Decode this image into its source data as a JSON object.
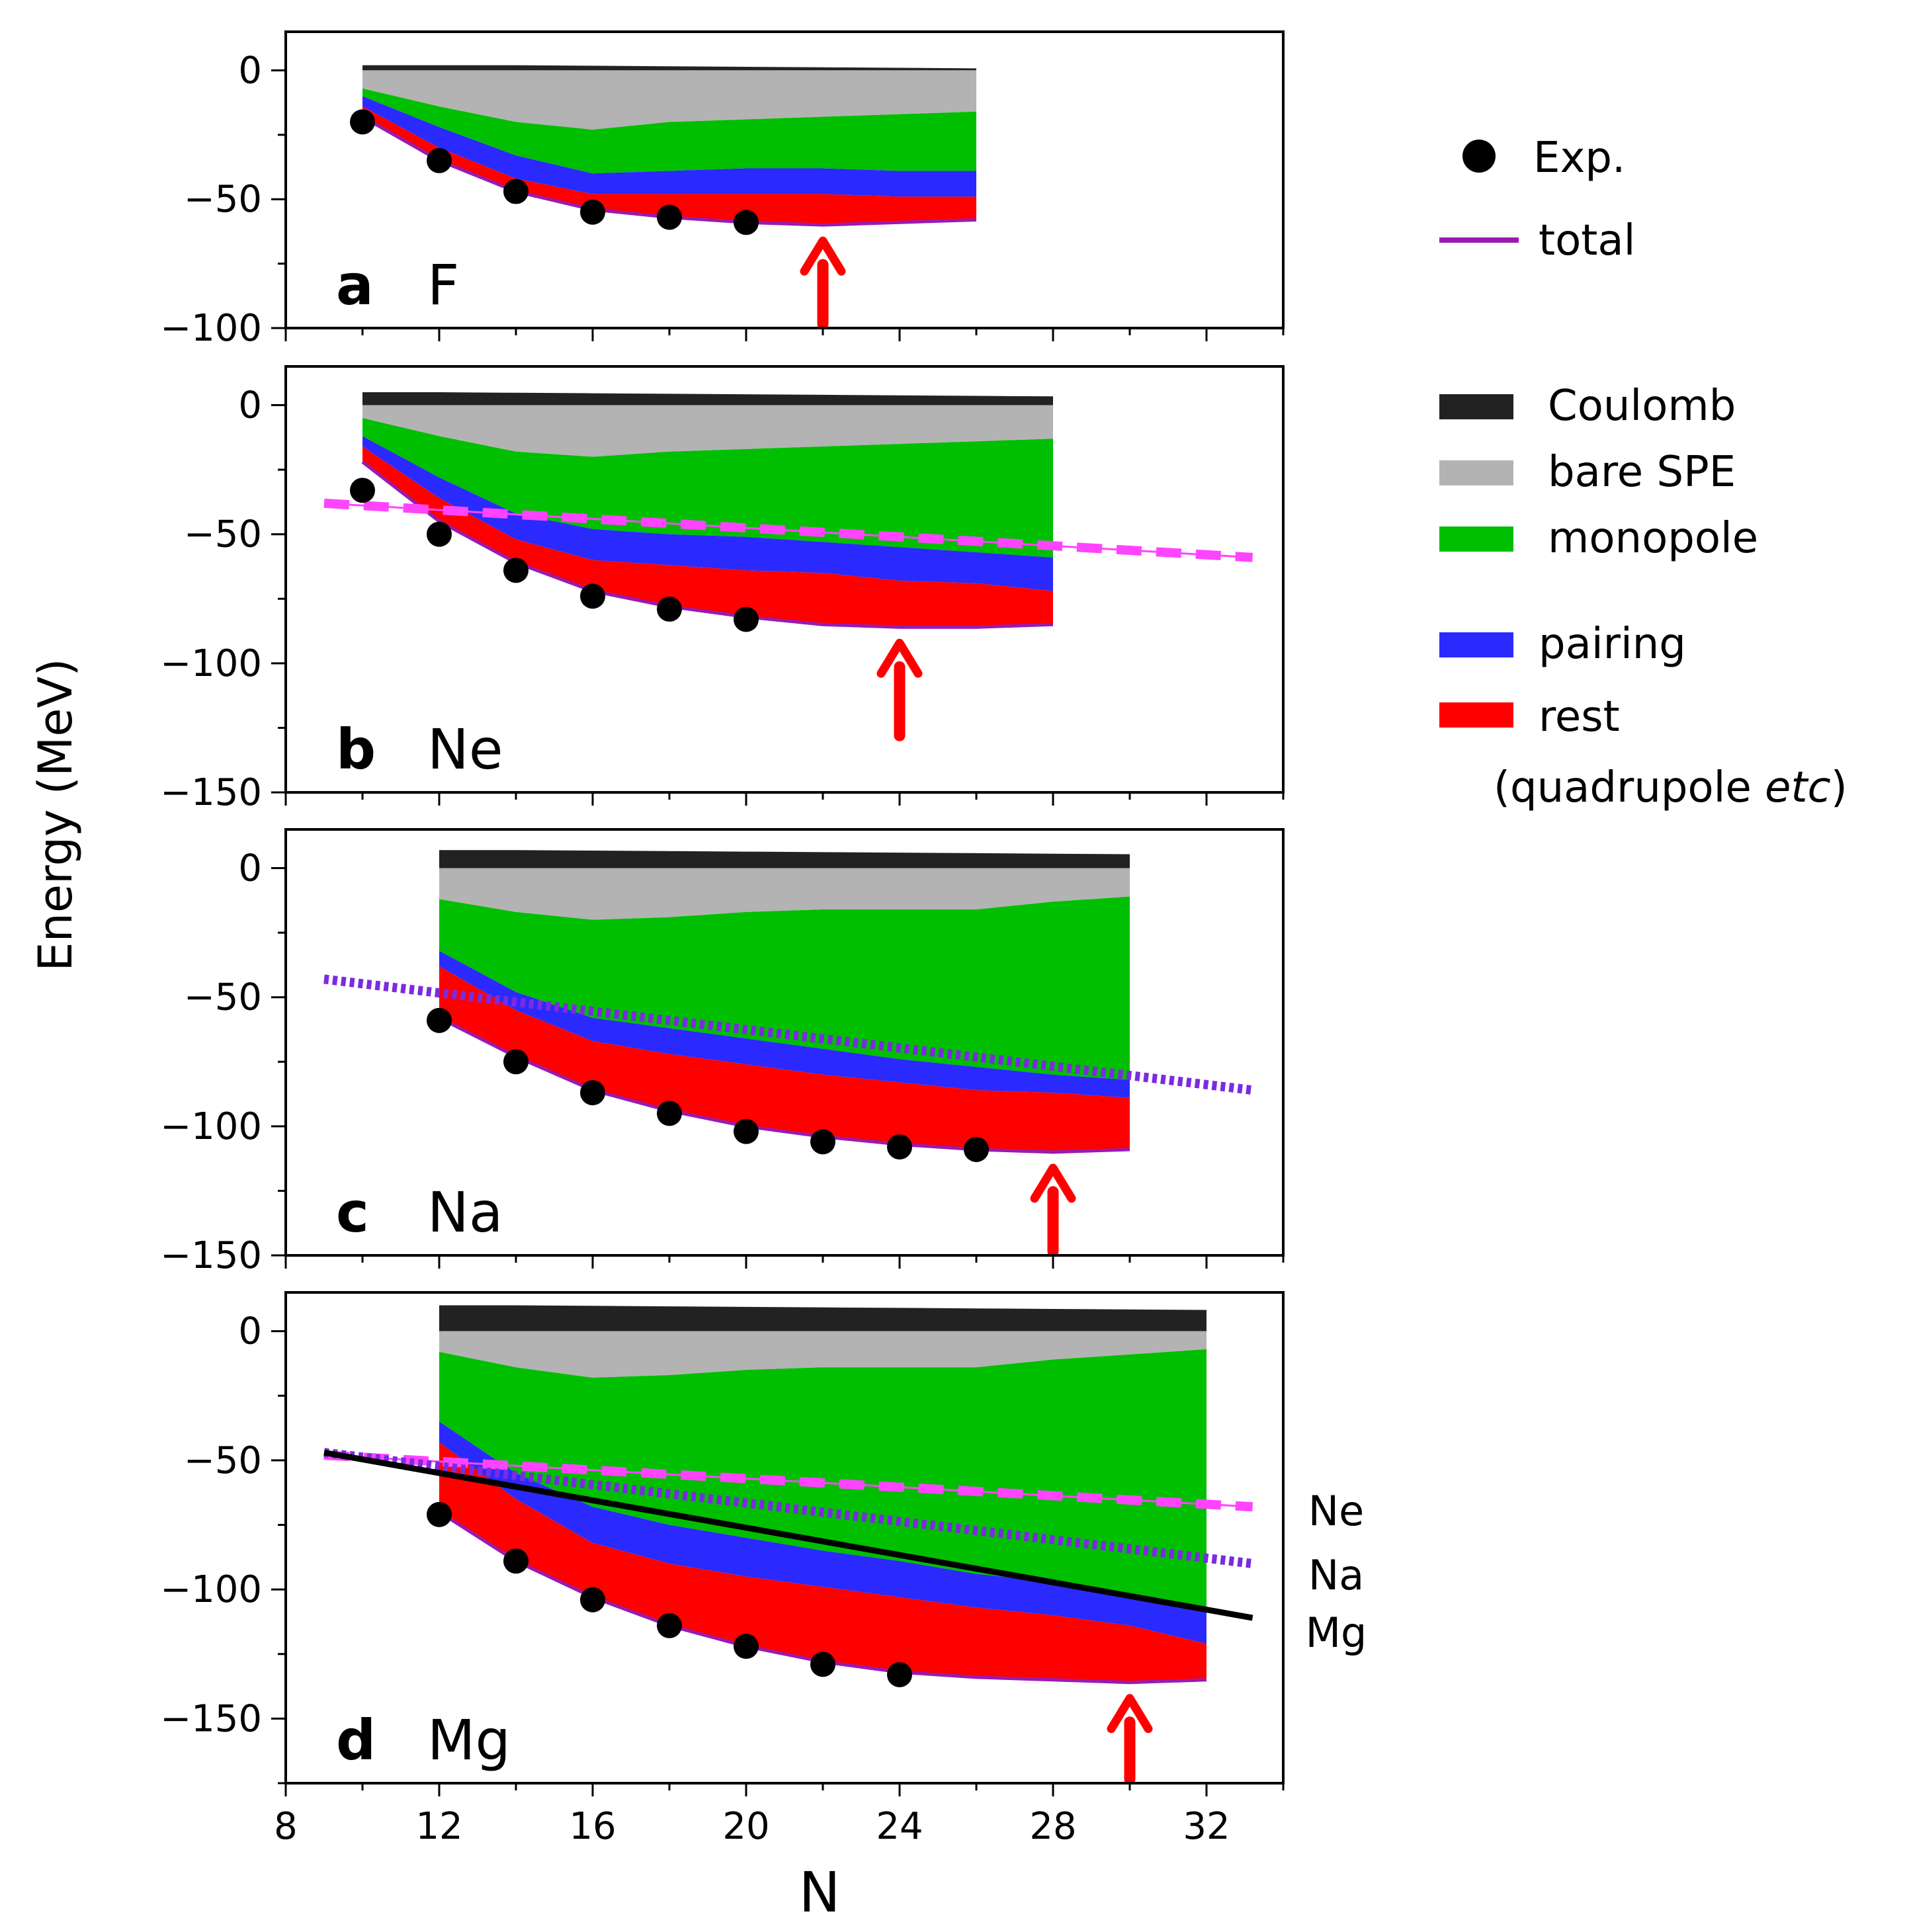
{
  "chart_data": {
    "type": "area",
    "ylabel": "Energy (MeV)",
    "xlabel": "N",
    "xlim": [
      8,
      34
    ],
    "x_ticks": [
      8,
      12,
      16,
      20,
      24,
      28,
      32
    ],
    "legend": {
      "exp": "Exp.",
      "total": "total",
      "coulomb": "Coulomb",
      "bare": "bare SPE",
      "monopole": "monopole",
      "pairing": "pairing",
      "rest": "rest",
      "rest_note_prefix": "(quadrupole ",
      "rest_note_italic": "etc",
      "rest_note_suffix": ")"
    },
    "colors": {
      "coulomb": "#222222",
      "bare": "#b3b3b3",
      "monopole": "#00bf00",
      "pairing": "#2a2aff",
      "rest": "#ff0000",
      "total": "#9a1ab0",
      "exp": "#000000",
      "arrow": "#ff0000",
      "ne_line": "#ff44ff",
      "na_line": "#7b2be0",
      "mg_line": "#000000"
    },
    "side_labels": [
      "Ne",
      "Na",
      "Mg"
    ],
    "panels": [
      {
        "letter": "a",
        "element": "F",
        "ylim": [
          -100,
          15
        ],
        "yticks": [
          0,
          -50,
          -100
        ],
        "x": [
          10,
          12,
          14,
          16,
          18,
          20,
          22,
          24,
          26
        ],
        "coulomb_top": [
          2,
          2,
          2,
          1.8,
          1.6,
          1.4,
          1.2,
          1.0,
          0.8
        ],
        "bare_bottom": [
          -7,
          -14,
          -20,
          -23,
          -20,
          -19,
          -18,
          -17,
          -16
        ],
        "monopole_bottom": [
          -10,
          -22,
          -33,
          -40,
          -39,
          -38,
          -38,
          -39,
          -39
        ],
        "pairing_bottom": [
          -14,
          -30,
          -42,
          -48,
          -48,
          -48,
          -48,
          -49,
          -49
        ],
        "total": [
          -18,
          -35,
          -47,
          -54,
          -57,
          -59,
          -60,
          -59,
          -58
        ],
        "exp_x": [
          10,
          12,
          14,
          16,
          18,
          20
        ],
        "exp_y": [
          -20,
          -35,
          -47,
          -55,
          -57,
          -59
        ],
        "arrow_x": 22,
        "lines": []
      },
      {
        "letter": "b",
        "element": "Ne",
        "ylim": [
          -150,
          15
        ],
        "yticks": [
          0,
          -50,
          -100,
          -150
        ],
        "x": [
          10,
          12,
          14,
          16,
          18,
          20,
          22,
          24,
          26,
          28
        ],
        "coulomb_top": [
          5,
          5,
          4.8,
          4.6,
          4.4,
          4.2,
          4.0,
          3.8,
          3.6,
          3.4
        ],
        "bare_bottom": [
          -5,
          -12,
          -18,
          -20,
          -18,
          -17,
          -16,
          -15,
          -14,
          -13
        ],
        "monopole_bottom": [
          -12,
          -28,
          -42,
          -48,
          -50,
          -51,
          -53,
          -55,
          -57,
          -59
        ],
        "pairing_bottom": [
          -16,
          -36,
          -52,
          -60,
          -62,
          -64,
          -65,
          -68,
          -69,
          -72
        ],
        "total": [
          -22,
          -45,
          -61,
          -72,
          -78,
          -82,
          -85,
          -86,
          -86,
          -85
        ],
        "exp_x": [
          10,
          12,
          14,
          16,
          18,
          20
        ],
        "exp_y": [
          -33,
          -50,
          -64,
          -74,
          -79,
          -83
        ],
        "arrow_x": 24,
        "lines": [
          {
            "name": "ne",
            "x1": 9,
            "y1": -38,
            "x2": 33.2,
            "y2": -59
          }
        ]
      },
      {
        "letter": "c",
        "element": "Na",
        "ylim": [
          -150,
          15
        ],
        "yticks": [
          0,
          -50,
          -100,
          -150
        ],
        "x": [
          12,
          14,
          16,
          18,
          20,
          22,
          24,
          26,
          28,
          30
        ],
        "coulomb_top": [
          7,
          7,
          6.8,
          6.6,
          6.4,
          6.2,
          6.0,
          5.8,
          5.6,
          5.4
        ],
        "bare_bottom": [
          -12,
          -17,
          -20,
          -19,
          -17,
          -16,
          -16,
          -16,
          -13,
          -11
        ],
        "monopole_bottom": [
          -32,
          -48,
          -58,
          -62,
          -66,
          -70,
          -74,
          -77,
          -80,
          -82
        ],
        "pairing_bottom": [
          -38,
          -55,
          -67,
          -72,
          -76,
          -80,
          -83,
          -86,
          -87,
          -89
        ],
        "total": [
          -58,
          -73,
          -86,
          -94,
          -100,
          -104,
          -107,
          -109,
          -110,
          -109
        ],
        "exp_x": [
          12,
          14,
          16,
          18,
          20,
          22,
          24,
          26
        ],
        "exp_y": [
          -59,
          -75,
          -87,
          -95,
          -102,
          -106,
          -108,
          -109
        ],
        "arrow_x": 28,
        "lines": [
          {
            "name": "na",
            "x1": 9,
            "y1": -43,
            "x2": 33.2,
            "y2": -86
          }
        ]
      },
      {
        "letter": "d",
        "element": "Mg",
        "ylim": [
          -175,
          15
        ],
        "yticks": [
          0,
          -50,
          -100,
          -150
        ],
        "x": [
          12,
          14,
          16,
          18,
          20,
          22,
          24,
          26,
          28,
          30,
          32
        ],
        "coulomb_top": [
          10,
          10,
          9.8,
          9.6,
          9.4,
          9.2,
          9.0,
          8.8,
          8.6,
          8.4,
          8.2
        ],
        "bare_bottom": [
          -8,
          -14,
          -18,
          -17,
          -15,
          -14,
          -14,
          -14,
          -11,
          -9,
          -7
        ],
        "monopole_bottom": [
          -35,
          -55,
          -68,
          -75,
          -80,
          -85,
          -89,
          -94,
          -97,
          -102,
          -108
        ],
        "pairing_bottom": [
          -43,
          -65,
          -82,
          -90,
          -95,
          -99,
          -103,
          -107,
          -110,
          -114,
          -121
        ],
        "total": [
          -70,
          -89,
          -103,
          -114,
          -122,
          -128,
          -132,
          -134,
          -135,
          -136,
          -135
        ],
        "exp_x": [
          12,
          14,
          16,
          18,
          20,
          22,
          24
        ],
        "exp_y": [
          -71,
          -89,
          -104,
          -114,
          -122,
          -129,
          -133
        ],
        "arrow_x": 30,
        "lines": [
          {
            "name": "ne",
            "x1": 9,
            "y1": -48,
            "x2": 33.2,
            "y2": -68
          },
          {
            "name": "na",
            "x1": 9,
            "y1": -47,
            "x2": 33.2,
            "y2": -90
          },
          {
            "name": "mg",
            "x1": 9,
            "y1": -47,
            "x2": 33.2,
            "y2": -111
          }
        ]
      }
    ]
  }
}
